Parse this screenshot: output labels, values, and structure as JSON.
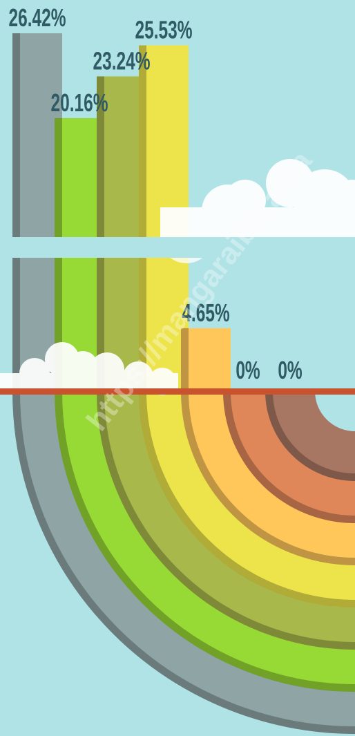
{
  "chart_data": {
    "type": "bar",
    "values": [
      26.42,
      20.16,
      23.24,
      25.53,
      4.65,
      0,
      0
    ],
    "value_labels": [
      "26.42%",
      "20.16%",
      "23.24%",
      "25.53%",
      "4.65%",
      "0%",
      "0%"
    ],
    "colors": [
      "#8fa5a5",
      "#97d935",
      "#a8b84a",
      "#ece44a",
      "#ffc65a",
      "#e0875a",
      "#a87763"
    ],
    "annotation": "https://mangaraibaratka"
  }
}
